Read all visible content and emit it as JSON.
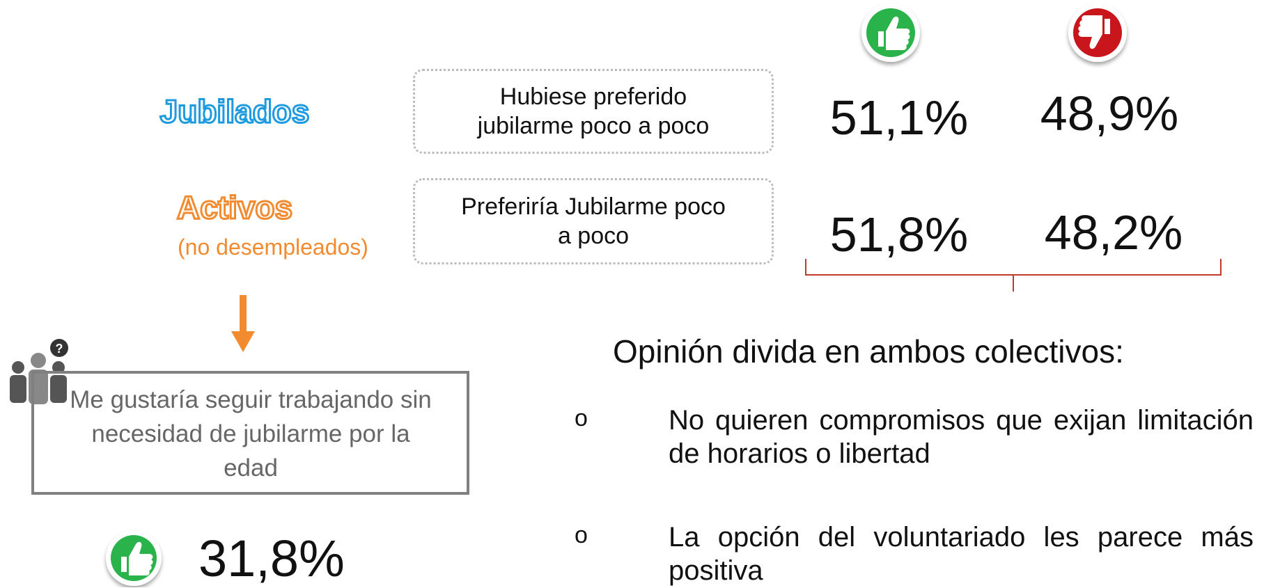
{
  "groups": [
    {
      "title": "Jubilados",
      "statement": "Hubiese preferido jubilarme poco a poco",
      "agree": "51,1%",
      "disagree": "48,9%"
    },
    {
      "title": "Activos",
      "subtitle": "(no desempleados)",
      "statement": "Preferiría Jubilarme poco a poco",
      "agree": "51,8%",
      "disagree": "48,2%"
    }
  ],
  "people_icon": {
    "badge": "?"
  },
  "work": {
    "statement": "Me gustaría seguir trabajando sin necesidad de jubilarme por la edad",
    "agree": "31,8%"
  },
  "conclusion": {
    "title": "Opinión divida en ambos colectivos:",
    "bullets": [
      "No quieren compromisos que exijan limitación de horarios o libertad",
      "La opción del voluntariado les parece más positiva"
    ]
  }
}
